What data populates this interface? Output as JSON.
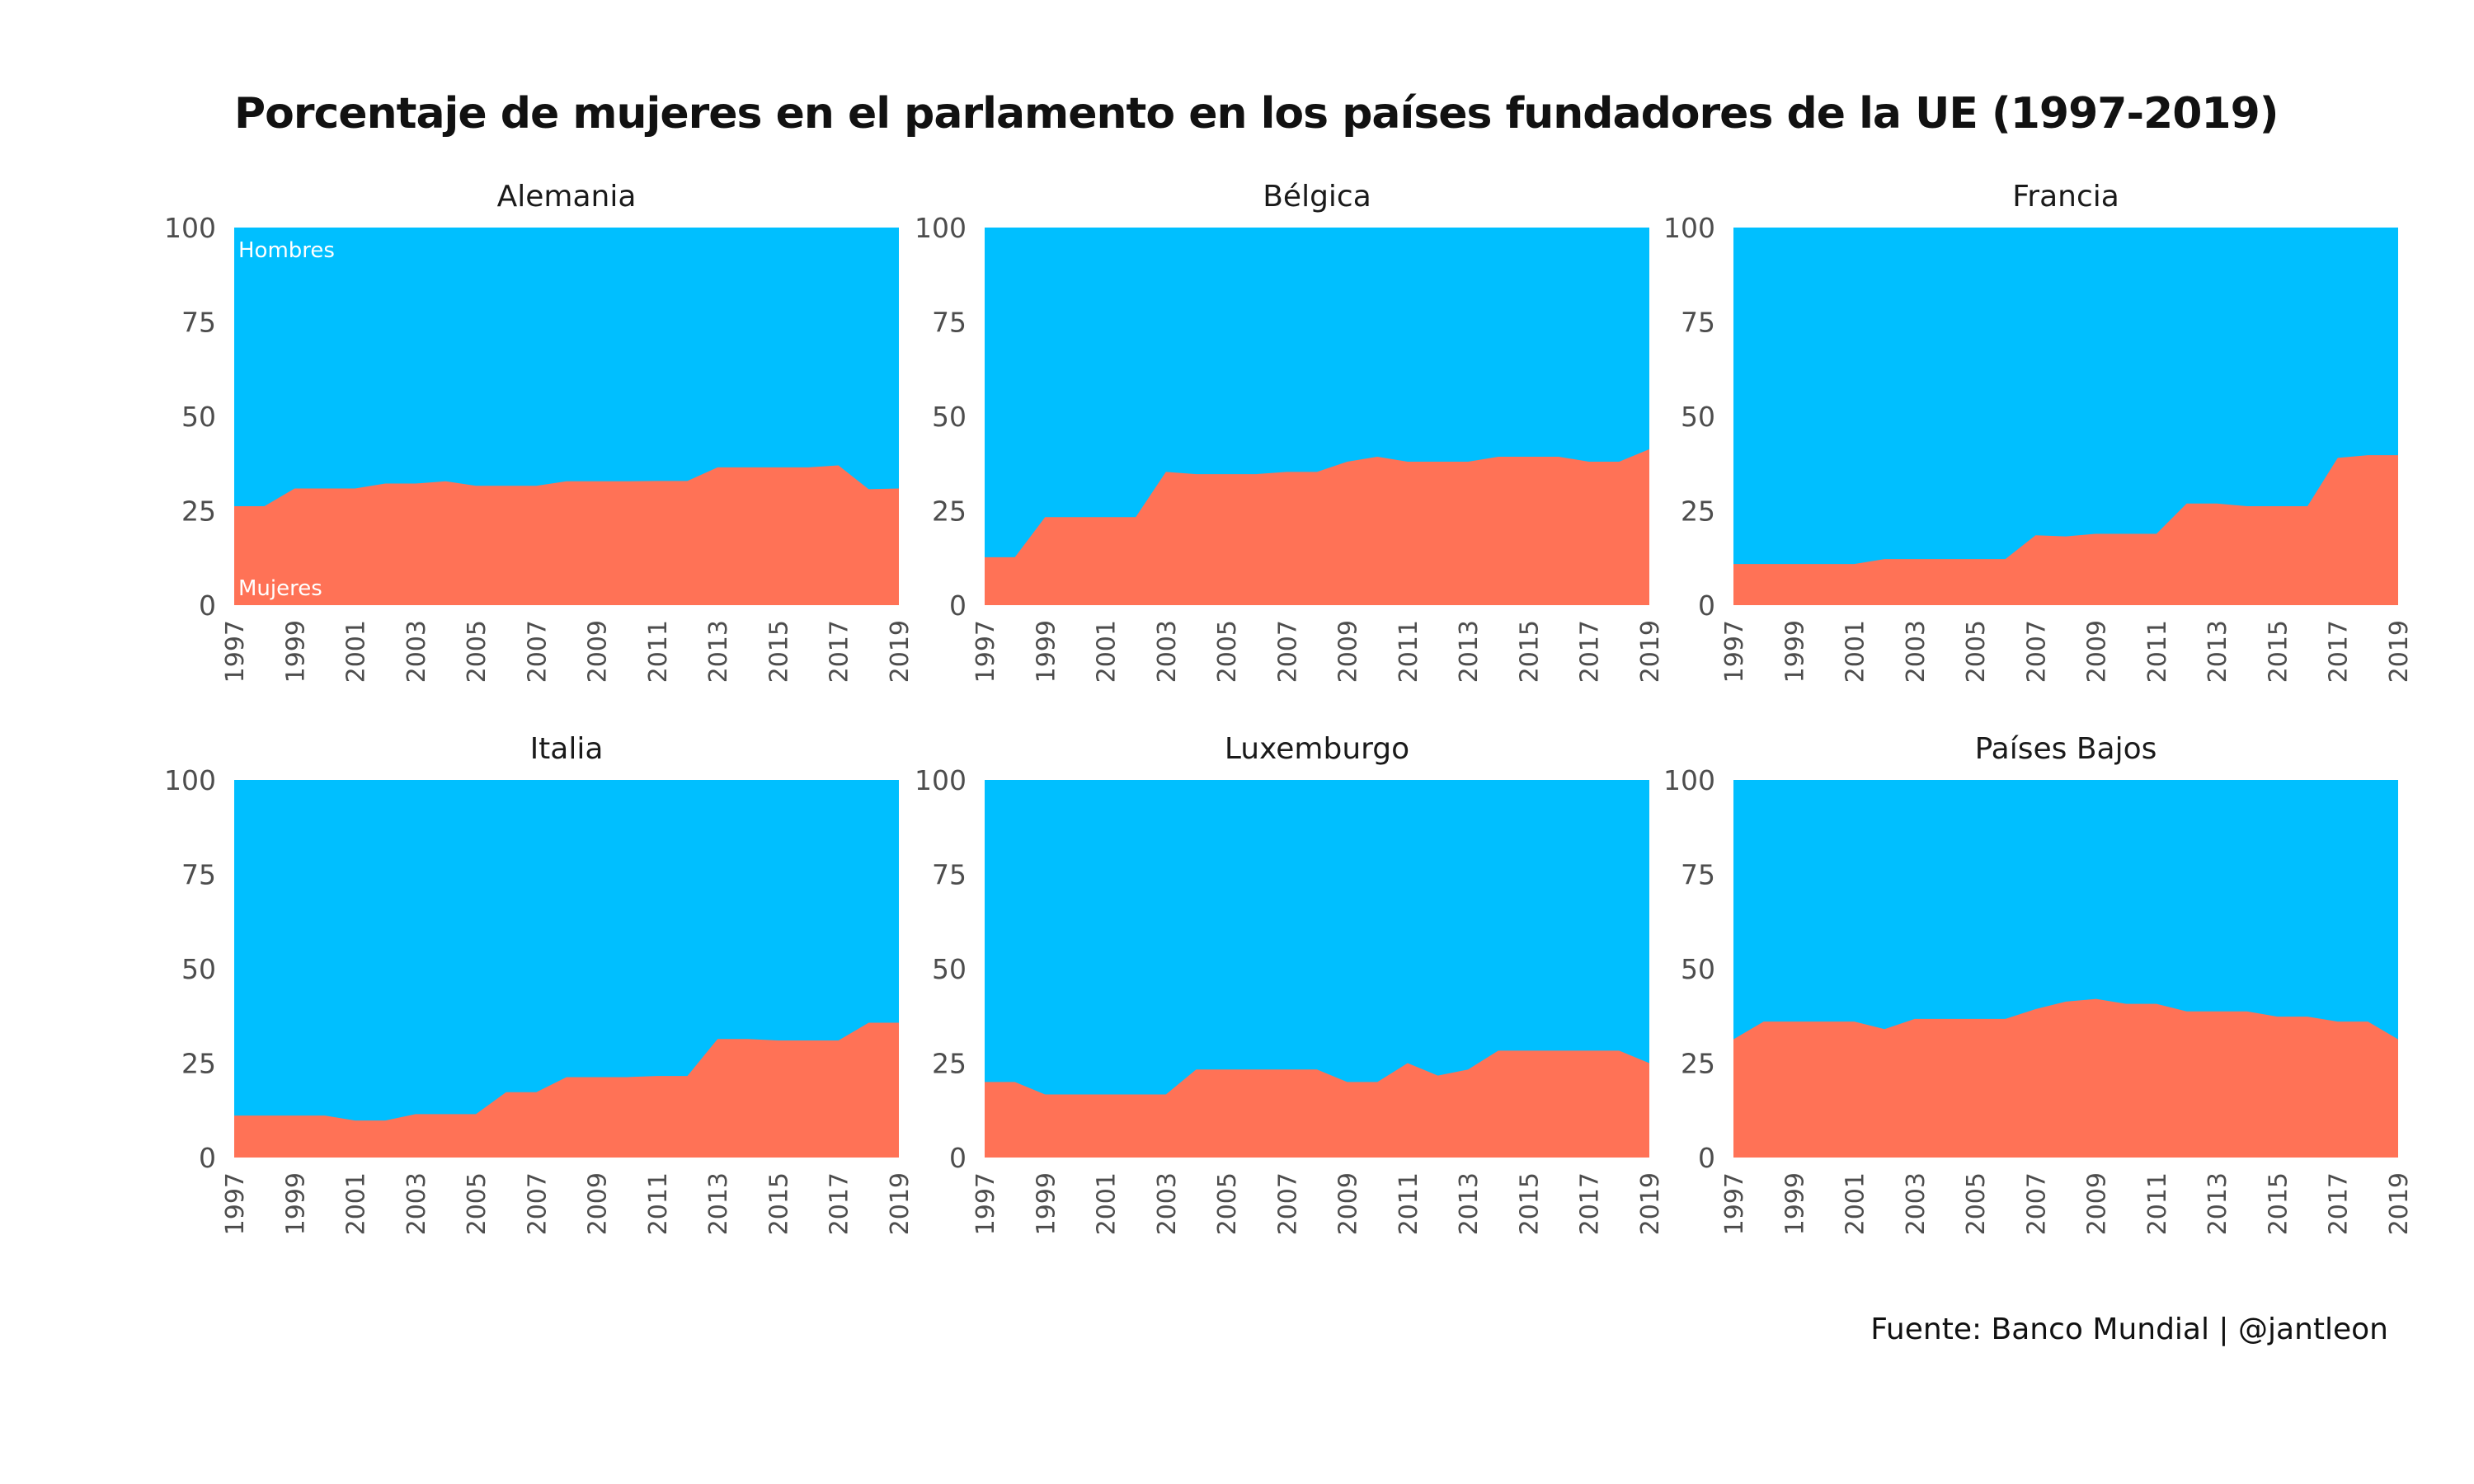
{
  "title": "Porcentaje de mujeres en el parlamento en los países fundadores de la UE (1997-2019)",
  "source": "Fuente: Banco Mundial | @jantleon",
  "colors": {
    "hombres": "#00bfff",
    "mujeres": "#ff7256",
    "background": "#ffffff"
  },
  "chart_data": {
    "type": "area",
    "stacked": true,
    "facets": [
      "Alemania",
      "Bélgica",
      "Francia",
      "Italia",
      "Luxemburgo",
      "Países Bajos"
    ],
    "x": [
      1997,
      1998,
      1999,
      2000,
      2001,
      2002,
      2003,
      2004,
      2005,
      2006,
      2007,
      2008,
      2009,
      2010,
      2011,
      2012,
      2013,
      2014,
      2015,
      2016,
      2017,
      2018,
      2019
    ],
    "x_tick_labels": [
      "1997",
      "1999",
      "2001",
      "2003",
      "2005",
      "2007",
      "2009",
      "2011",
      "2013",
      "2015",
      "2017",
      "2019"
    ],
    "y_tick_labels": [
      "0",
      "25",
      "50",
      "75",
      "100"
    ],
    "ylim": [
      0,
      100
    ],
    "grid": false,
    "legend": "none",
    "series_labels": {
      "upper": "Hombres",
      "lower": "Mujeres"
    },
    "mujeres": {
      "Alemania": [
        26.2,
        26.2,
        30.9,
        30.9,
        30.9,
        32.2,
        32.2,
        32.8,
        31.6,
        31.6,
        31.6,
        32.8,
        32.8,
        32.8,
        32.9,
        32.9,
        36.5,
        36.5,
        36.5,
        36.5,
        37.0,
        30.7,
        30.9
      ],
      "Bélgica": [
        12.7,
        12.7,
        23.3,
        23.3,
        23.3,
        23.3,
        35.3,
        34.7,
        34.7,
        34.7,
        35.3,
        35.3,
        38.0,
        39.3,
        38.0,
        38.0,
        38.0,
        39.3,
        39.3,
        39.3,
        38.0,
        38.0,
        41.3
      ],
      "Francia": [
        10.9,
        10.9,
        10.9,
        10.9,
        10.9,
        12.2,
        12.2,
        12.2,
        12.2,
        12.2,
        18.5,
        18.2,
        18.9,
        18.9,
        18.9,
        26.9,
        26.9,
        26.2,
        26.2,
        26.2,
        39.0,
        39.7,
        39.7
      ],
      "Italia": [
        11.1,
        11.1,
        11.1,
        11.1,
        9.8,
        9.8,
        11.5,
        11.5,
        11.5,
        17.3,
        17.3,
        21.3,
        21.3,
        21.3,
        21.6,
        21.6,
        31.4,
        31.4,
        31.0,
        31.0,
        31.0,
        35.7,
        35.7
      ],
      "Luxemburgo": [
        20.0,
        20.0,
        16.7,
        16.7,
        16.7,
        16.7,
        16.7,
        23.3,
        23.3,
        23.3,
        23.3,
        23.3,
        20.0,
        20.0,
        25.0,
        21.7,
        23.3,
        28.3,
        28.3,
        28.3,
        28.3,
        28.3,
        25.0
      ],
      "Países Bajos": [
        31.3,
        36.0,
        36.0,
        36.0,
        36.0,
        34.0,
        36.7,
        36.7,
        36.7,
        36.7,
        39.3,
        41.3,
        42.0,
        40.7,
        40.7,
        38.7,
        38.7,
        38.7,
        37.3,
        37.3,
        36.0,
        36.0,
        31.3
      ]
    }
  }
}
